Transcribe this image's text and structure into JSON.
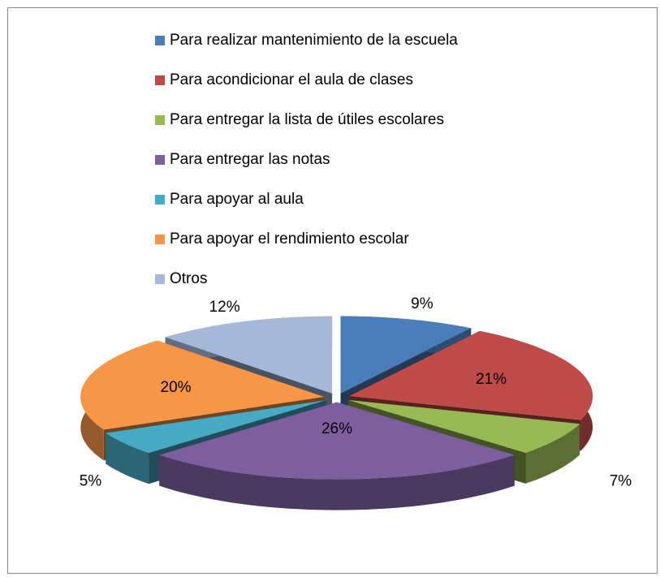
{
  "chart_data": {
    "type": "pie3d",
    "categories": [
      "Para realizar mantenimiento  de la escuela",
      "Para acondicionar el aula de clases",
      "Para entregar la lista  de útiles escolares",
      "Para entregar las notas",
      "Para apoyar al aula",
      "Para apoyar  el rendimiento escolar",
      "Otros"
    ],
    "values": [
      9,
      21,
      7,
      26,
      5,
      20,
      12
    ],
    "value_labels": [
      "9%",
      "21%",
      "7%",
      "26%",
      "5%",
      "20%",
      "12%"
    ],
    "colors": [
      "#4a7ebb",
      "#be4b48",
      "#98b954",
      "#7d5fa0",
      "#46aac5",
      "#f79646",
      "#a5b8da"
    ],
    "legend": "top"
  }
}
